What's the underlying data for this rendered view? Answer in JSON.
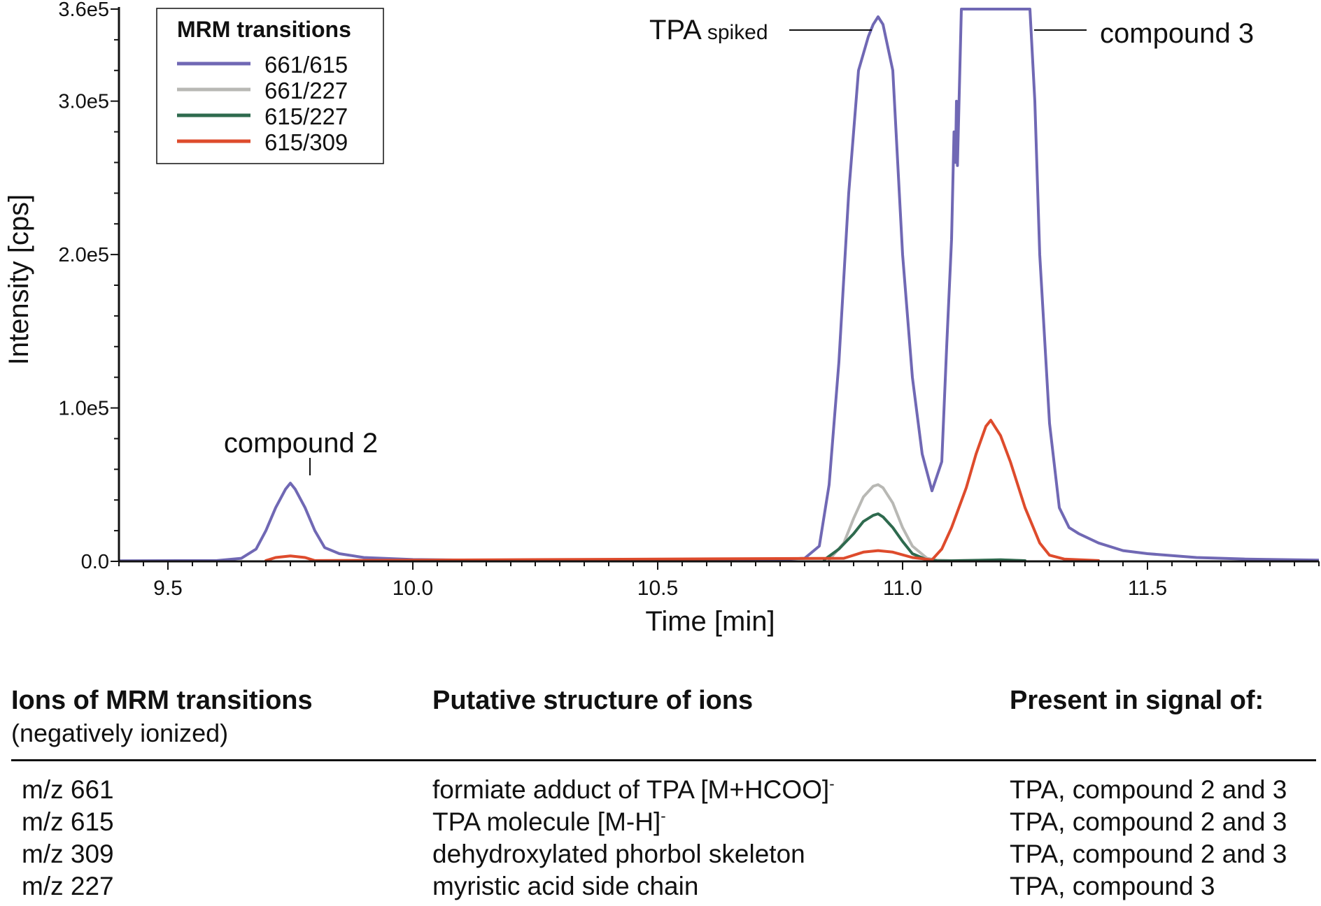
{
  "chart_data": {
    "type": "line",
    "xlabel": "Time [min]",
    "ylabel": "Intensity [cps]",
    "xlim": [
      9.4,
      11.85
    ],
    "ylim": [
      0,
      360000
    ],
    "x_ticks": [
      9.5,
      10.0,
      10.5,
      11.0,
      11.5
    ],
    "x_tick_labels": [
      "9.5",
      "10.0",
      "10.5",
      "11.0",
      "11.5"
    ],
    "y_ticks": [
      0,
      100000,
      200000,
      300000,
      360000
    ],
    "y_tick_labels": [
      "0.0",
      "1.0e5",
      "2.0e5",
      "3.0e5",
      "3.6e5"
    ],
    "legend": {
      "title": "MRM transitions",
      "placement": "top-left",
      "entries": [
        "661/615",
        "661/227",
        "615/227",
        "615/309"
      ]
    },
    "annotations": {
      "tpa_main": "TPA",
      "tpa_sub": "spiked",
      "compound3": "compound 3",
      "compound2": "compound 2"
    },
    "series": [
      {
        "name": "661/615",
        "color": "#7068b4",
        "x": [
          9.4,
          9.6,
          9.65,
          9.68,
          9.7,
          9.72,
          9.74,
          9.75,
          9.76,
          9.78,
          9.8,
          9.82,
          9.85,
          9.9,
          10.0,
          10.2,
          10.5,
          10.7,
          10.8,
          10.83,
          10.85,
          10.87,
          10.89,
          10.91,
          10.93,
          10.94,
          10.95,
          10.96,
          10.98,
          11.0,
          11.02,
          11.04,
          11.06,
          11.08,
          11.09,
          11.1,
          11.105,
          11.108,
          11.11,
          11.112,
          11.12,
          11.13,
          11.2,
          11.26,
          11.27,
          11.28,
          11.3,
          11.32,
          11.34,
          11.36,
          11.4,
          11.45,
          11.5,
          11.6,
          11.7,
          11.85
        ],
        "y": [
          300,
          500,
          2000,
          8000,
          20000,
          35000,
          47000,
          51000,
          47000,
          35000,
          20000,
          9000,
          5000,
          2500,
          1200,
          600,
          400,
          500,
          2000,
          10000,
          50000,
          130000,
          240000,
          320000,
          342000,
          350000,
          355000,
          350000,
          320000,
          200000,
          120000,
          70000,
          46000,
          65000,
          140000,
          210000,
          280000,
          260000,
          300000,
          258000,
          360000,
          360000,
          360000,
          360000,
          300000,
          200000,
          90000,
          35000,
          22000,
          18000,
          12000,
          7000,
          5000,
          2500,
          1500,
          800
        ]
      },
      {
        "name": "661/227",
        "color": "#b8b8b4",
        "x": [
          10.85,
          10.88,
          10.9,
          10.92,
          10.94,
          10.95,
          10.96,
          10.98,
          11.0,
          11.02,
          11.05,
          11.07,
          11.1,
          11.2,
          11.25
        ],
        "y": [
          1000,
          12000,
          28000,
          42000,
          49000,
          50000,
          48000,
          38000,
          22000,
          10000,
          2000,
          800,
          500,
          1000,
          500
        ]
      },
      {
        "name": "615/227",
        "color": "#2e6a4e",
        "x": [
          10.84,
          10.87,
          10.9,
          10.92,
          10.94,
          10.95,
          10.96,
          10.98,
          11.0,
          11.02,
          11.05,
          11.07,
          11.1,
          11.2,
          11.25
        ],
        "y": [
          1000,
          8000,
          18000,
          26000,
          30000,
          31000,
          29000,
          22000,
          13000,
          5000,
          1000,
          400,
          300,
          1000,
          400
        ]
      },
      {
        "name": "615/309",
        "color": "#de4b2c",
        "x": [
          9.7,
          9.72,
          9.75,
          9.78,
          9.8,
          10.88,
          10.92,
          10.95,
          10.98,
          11.02,
          11.06,
          11.08,
          11.1,
          11.13,
          11.15,
          11.17,
          11.18,
          11.2,
          11.22,
          11.25,
          11.28,
          11.3,
          11.33,
          11.4
        ],
        "y": [
          500,
          2500,
          3500,
          2500,
          500,
          2000,
          6000,
          7000,
          6000,
          2500,
          1000,
          8000,
          22000,
          48000,
          70000,
          88000,
          92000,
          82000,
          65000,
          35000,
          12000,
          4000,
          1500,
          500
        ]
      }
    ]
  },
  "table": {
    "headers": {
      "col1": "Ions of MRM transitions",
      "col1_sub": "(negatively ionized)",
      "col2": "Putative structure of ions",
      "col3": "Present in signal of:"
    },
    "rows": [
      {
        "ion": "m/z 661",
        "structure": "formiate adduct of TPA [M+HCOO]",
        "structure_sup": "-",
        "present": "TPA, compound 2 and 3"
      },
      {
        "ion": "m/z 615",
        "structure": "TPA molecule [M-H]",
        "structure_sup": "-",
        "present": "TPA, compound 2 and 3"
      },
      {
        "ion": "m/z 309",
        "structure": "dehydroxylated phorbol skeleton",
        "structure_sup": "",
        "present": "TPA, compound 2 and 3"
      },
      {
        "ion": "m/z 227",
        "structure": "myristic acid side chain",
        "structure_sup": "",
        "present": "TPA, compound 3"
      }
    ]
  }
}
